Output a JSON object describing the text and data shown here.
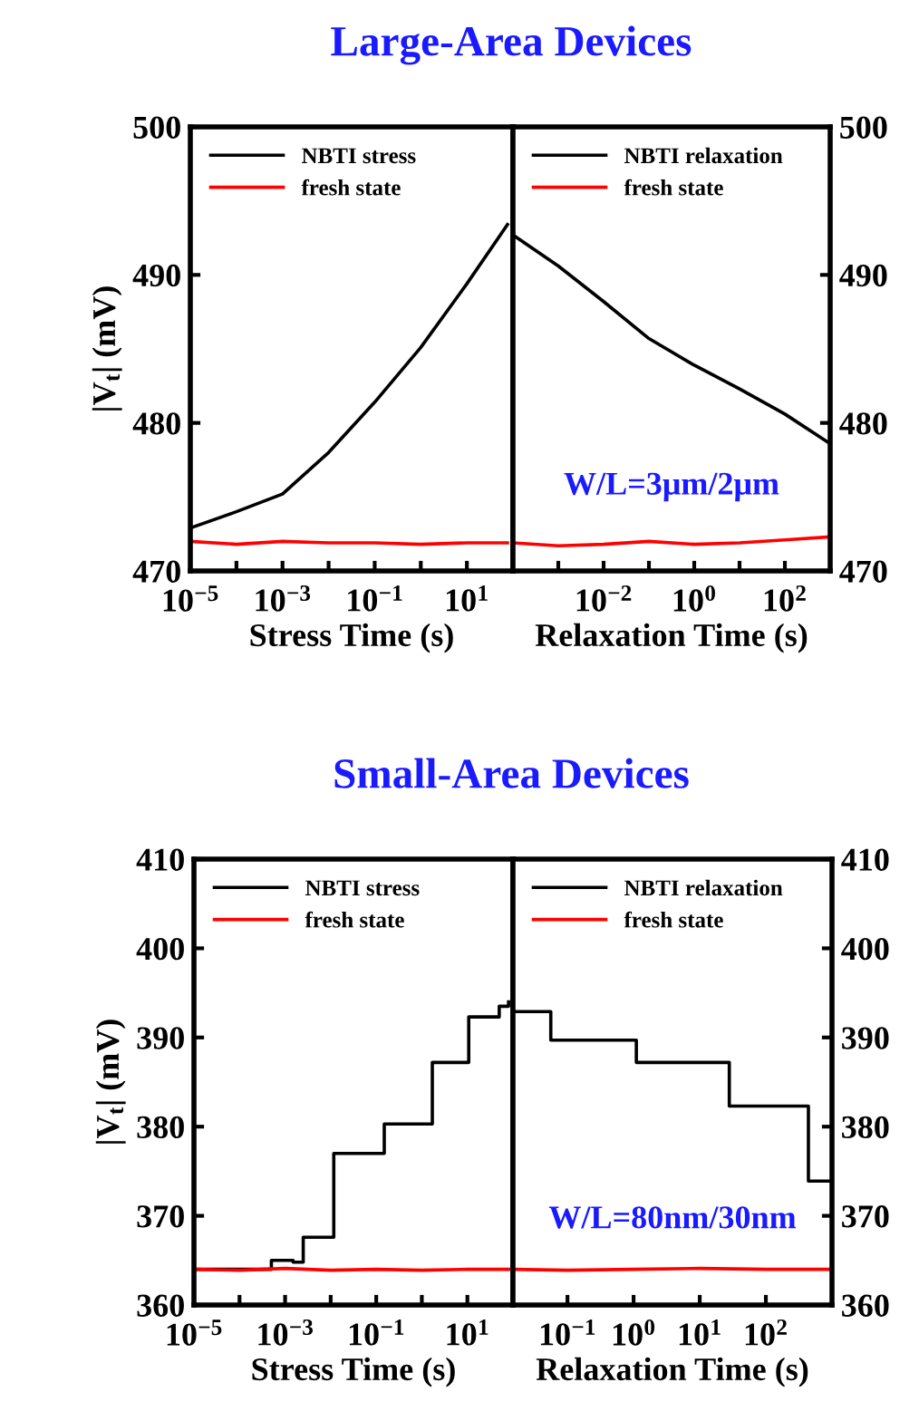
{
  "chart_data": [
    {
      "type": "line",
      "title": "Large-Area Devices",
      "xlabel": "Stress Time (s)",
      "ylabel": "|V$_{t}$| (mV)",
      "log": "x",
      "legend": "top left",
      "marker": "none",
      "line_style": "solid",
      "grid": false,
      "xlim": [
        1e-05,
        100
      ],
      "xticks": [
        {
          "value": 1e-05,
          "label": "10$^{−5}$"
        },
        {
          "value": 0.0001,
          "label": null
        },
        {
          "value": 0.001,
          "label": "10$^{−3}$"
        },
        {
          "value": 0.01,
          "label": null
        },
        {
          "value": 0.1,
          "label": "10$^{−1}$"
        },
        {
          "value": 1,
          "label": null
        },
        {
          "value": 10,
          "label": "10$^{1}$"
        }
      ],
      "ylim": [
        470,
        500
      ],
      "yticks": [
        470,
        480,
        490,
        500
      ],
      "series": [
        {
          "name": "NBTI stress",
          "color": "#000000",
          "x": [
            1e-05,
            0.0001,
            0.001,
            0.01,
            0.1,
            1,
            10,
            76
          ],
          "values": [
            472.9,
            474,
            475.2,
            478,
            481.4,
            485.1,
            489.4,
            493.4
          ]
        },
        {
          "name": "fresh state",
          "color": "#ff0000",
          "x": [
            1e-05,
            0.0001,
            0.001,
            0.01,
            0.1,
            1,
            10,
            76
          ],
          "values": [
            472,
            471.8,
            472,
            471.9,
            471.9,
            471.8,
            471.9,
            471.9
          ]
        }
      ]
    },
    {
      "type": "line",
      "xlabel": "Relaxation Time (s)",
      "log": "x",
      "legend": "top left",
      "marker": "none",
      "line_style": "solid",
      "grid": false,
      "xlim": [
        0.0001,
        1000
      ],
      "xticks": [
        {
          "value": 0.001,
          "label": null
        },
        {
          "value": 0.01,
          "label": "10$^{−2}$"
        },
        {
          "value": 0.1,
          "label": null
        },
        {
          "value": 1,
          "label": "10$^{0}$"
        },
        {
          "value": 10,
          "label": null
        },
        {
          "value": 100,
          "label": "10$^{2}$"
        }
      ],
      "y2lim": [
        470,
        500
      ],
      "y2ticks": [
        470,
        480,
        490,
        500
      ],
      "annotations": [
        "W/L=3μm/2μm"
      ],
      "series": [
        {
          "name": "NBTI relaxation",
          "color": "#000000",
          "axis": "y2",
          "x": [
            0.0001,
            0.001,
            0.01,
            0.1,
            1,
            10,
            100,
            1000
          ],
          "values": [
            492.7,
            490.6,
            488.2,
            485.7,
            483.9,
            482.3,
            480.6,
            478.6
          ]
        },
        {
          "name": "fresh state",
          "color": "#ff0000",
          "axis": "y2",
          "x": [
            0.0001,
            0.001,
            0.01,
            0.1,
            1,
            10,
            100,
            1000
          ],
          "values": [
            471.9,
            471.7,
            471.8,
            472,
            471.8,
            471.9,
            472.1,
            472.3
          ]
        }
      ]
    },
    {
      "type": "step",
      "title": "Small-Area Devices",
      "xlabel": "Stress Time (s)",
      "ylabel": "|V$_{t}$| (mV)",
      "log": "x",
      "legend": "top left",
      "marker": "none",
      "line_style": "solid",
      "grid": false,
      "xlim": [
        1e-05,
        100
      ],
      "xticks": [
        {
          "value": 1e-05,
          "label": "10$^{−5}$"
        },
        {
          "value": 0.0001,
          "label": null
        },
        {
          "value": 0.001,
          "label": "10$^{−3}$"
        },
        {
          "value": 0.01,
          "label": null
        },
        {
          "value": 0.1,
          "label": "10$^{−1}$"
        },
        {
          "value": 1,
          "label": null
        },
        {
          "value": 10,
          "label": "10$^{1}$"
        }
      ],
      "ylim": [
        360,
        410
      ],
      "yticks": [
        360,
        370,
        380,
        390,
        400,
        410
      ],
      "series": [
        {
          "name": "NBTI stress",
          "color": "#000000",
          "x": [
            1e-05,
            0.0005,
            0.0015,
            0.0025,
            0.0117,
            0.15,
            1.7,
            10.7,
            50,
            80
          ],
          "values": [
            364,
            365,
            364.8,
            367.6,
            377,
            380.3,
            387.2,
            392.3,
            393.5,
            394
          ]
        },
        {
          "name": "fresh state",
          "color": "#ff0000",
          "type": "line",
          "x": [
            1e-05,
            0.0001,
            0.001,
            0.01,
            0.1,
            1,
            10,
            80
          ],
          "values": [
            364,
            363.9,
            364.1,
            363.9,
            364,
            363.9,
            364,
            364
          ]
        }
      ]
    },
    {
      "type": "step",
      "xlabel": "Relaxation Time (s)",
      "log": "x",
      "legend": "top left",
      "marker": "none",
      "line_style": "solid",
      "grid": false,
      "xlim": [
        0.015,
        1000
      ],
      "xticks": [
        {
          "value": 0.1,
          "label": "10$^{−1}$"
        },
        {
          "value": 1,
          "label": "10$^{0}$"
        },
        {
          "value": 10,
          "label": "10$^{1}$"
        },
        {
          "value": 100,
          "label": "10$^{2}$"
        }
      ],
      "y2lim": [
        360,
        410
      ],
      "y2ticks": [
        360,
        370,
        380,
        390,
        400,
        410
      ],
      "annotations": [
        "W/L=80nm/30nm"
      ],
      "series": [
        {
          "name": "NBTI relaxation",
          "color": "#000000",
          "axis": "y2",
          "x": [
            0.015,
            0.056,
            1.1,
            28,
            440,
            1000
          ],
          "values": [
            392.9,
            389.7,
            387.2,
            382.3,
            373.9,
            373.9
          ]
        },
        {
          "name": "fresh state",
          "color": "#ff0000",
          "axis": "y2",
          "type": "line",
          "x": [
            0.015,
            0.1,
            1,
            10,
            100,
            1000
          ],
          "values": [
            364,
            363.9,
            364,
            364.1,
            364,
            364
          ]
        }
      ]
    }
  ]
}
